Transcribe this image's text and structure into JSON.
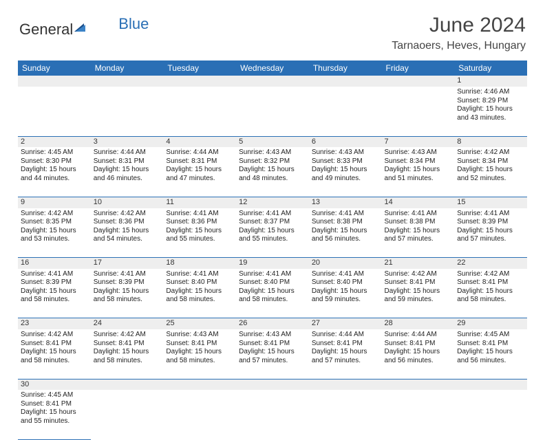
{
  "logo": {
    "general": "General",
    "blue": "Blue"
  },
  "title": "June 2024",
  "location": "Tarnaoers, Heves, Hungary",
  "weekdays": [
    "Sunday",
    "Monday",
    "Tuesday",
    "Wednesday",
    "Thursday",
    "Friday",
    "Saturday"
  ],
  "colors": {
    "header_bg": "#2a6fb5",
    "daynum_bg": "#eeeeee",
    "border": "#2a6fb5"
  },
  "weeks": [
    {
      "nums": [
        "",
        "",
        "",
        "",
        "",
        "",
        "1"
      ],
      "cells": [
        "",
        "",
        "",
        "",
        "",
        "",
        "Sunrise: 4:46 AM\nSunset: 8:29 PM\nDaylight: 15 hours and 43 minutes."
      ]
    },
    {
      "nums": [
        "2",
        "3",
        "4",
        "5",
        "6",
        "7",
        "8"
      ],
      "cells": [
        "Sunrise: 4:45 AM\nSunset: 8:30 PM\nDaylight: 15 hours and 44 minutes.",
        "Sunrise: 4:44 AM\nSunset: 8:31 PM\nDaylight: 15 hours and 46 minutes.",
        "Sunrise: 4:44 AM\nSunset: 8:31 PM\nDaylight: 15 hours and 47 minutes.",
        "Sunrise: 4:43 AM\nSunset: 8:32 PM\nDaylight: 15 hours and 48 minutes.",
        "Sunrise: 4:43 AM\nSunset: 8:33 PM\nDaylight: 15 hours and 49 minutes.",
        "Sunrise: 4:43 AM\nSunset: 8:34 PM\nDaylight: 15 hours and 51 minutes.",
        "Sunrise: 4:42 AM\nSunset: 8:34 PM\nDaylight: 15 hours and 52 minutes."
      ]
    },
    {
      "nums": [
        "9",
        "10",
        "11",
        "12",
        "13",
        "14",
        "15"
      ],
      "cells": [
        "Sunrise: 4:42 AM\nSunset: 8:35 PM\nDaylight: 15 hours and 53 minutes.",
        "Sunrise: 4:42 AM\nSunset: 8:36 PM\nDaylight: 15 hours and 54 minutes.",
        "Sunrise: 4:41 AM\nSunset: 8:36 PM\nDaylight: 15 hours and 55 minutes.",
        "Sunrise: 4:41 AM\nSunset: 8:37 PM\nDaylight: 15 hours and 55 minutes.",
        "Sunrise: 4:41 AM\nSunset: 8:38 PM\nDaylight: 15 hours and 56 minutes.",
        "Sunrise: 4:41 AM\nSunset: 8:38 PM\nDaylight: 15 hours and 57 minutes.",
        "Sunrise: 4:41 AM\nSunset: 8:39 PM\nDaylight: 15 hours and 57 minutes."
      ]
    },
    {
      "nums": [
        "16",
        "17",
        "18",
        "19",
        "20",
        "21",
        "22"
      ],
      "cells": [
        "Sunrise: 4:41 AM\nSunset: 8:39 PM\nDaylight: 15 hours and 58 minutes.",
        "Sunrise: 4:41 AM\nSunset: 8:39 PM\nDaylight: 15 hours and 58 minutes.",
        "Sunrise: 4:41 AM\nSunset: 8:40 PM\nDaylight: 15 hours and 58 minutes.",
        "Sunrise: 4:41 AM\nSunset: 8:40 PM\nDaylight: 15 hours and 58 minutes.",
        "Sunrise: 4:41 AM\nSunset: 8:40 PM\nDaylight: 15 hours and 59 minutes.",
        "Sunrise: 4:42 AM\nSunset: 8:41 PM\nDaylight: 15 hours and 59 minutes.",
        "Sunrise: 4:42 AM\nSunset: 8:41 PM\nDaylight: 15 hours and 58 minutes."
      ]
    },
    {
      "nums": [
        "23",
        "24",
        "25",
        "26",
        "27",
        "28",
        "29"
      ],
      "cells": [
        "Sunrise: 4:42 AM\nSunset: 8:41 PM\nDaylight: 15 hours and 58 minutes.",
        "Sunrise: 4:42 AM\nSunset: 8:41 PM\nDaylight: 15 hours and 58 minutes.",
        "Sunrise: 4:43 AM\nSunset: 8:41 PM\nDaylight: 15 hours and 58 minutes.",
        "Sunrise: 4:43 AM\nSunset: 8:41 PM\nDaylight: 15 hours and 57 minutes.",
        "Sunrise: 4:44 AM\nSunset: 8:41 PM\nDaylight: 15 hours and 57 minutes.",
        "Sunrise: 4:44 AM\nSunset: 8:41 PM\nDaylight: 15 hours and 56 minutes.",
        "Sunrise: 4:45 AM\nSunset: 8:41 PM\nDaylight: 15 hours and 56 minutes."
      ]
    },
    {
      "nums": [
        "30",
        "",
        "",
        "",
        "",
        "",
        ""
      ],
      "cells": [
        "Sunrise: 4:45 AM\nSunset: 8:41 PM\nDaylight: 15 hours and 55 minutes.",
        "",
        "",
        "",
        "",
        "",
        ""
      ]
    }
  ]
}
